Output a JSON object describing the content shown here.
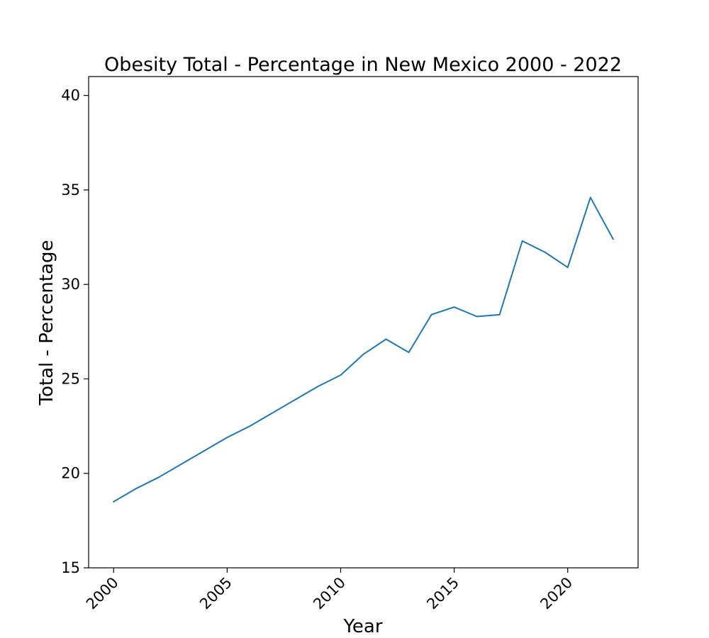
{
  "chart_data": {
    "type": "line",
    "title": "Obesity Total - Percentage in New Mexico 2000 - 2022",
    "xlabel": "Year",
    "ylabel": "Total - Percentage",
    "xlim": [
      1998.9,
      2023.1
    ],
    "ylim": [
      15,
      41
    ],
    "xticks": [
      2000,
      2005,
      2010,
      2015,
      2020
    ],
    "yticks": [
      15,
      20,
      25,
      30,
      35,
      40
    ],
    "grid": false,
    "line_color": "#1f77b4",
    "series": [
      {
        "x": [
          2000,
          2001,
          2002,
          2003,
          2004,
          2005,
          2006,
          2007,
          2008,
          2009,
          2010,
          2011,
          2012,
          2013,
          2014,
          2015,
          2016,
          2017,
          2018,
          2019,
          2020,
          2021,
          2022
        ],
        "values": [
          18.5,
          19.2,
          19.8,
          20.5,
          21.2,
          21.9,
          22.5,
          23.2,
          23.9,
          24.6,
          25.2,
          26.3,
          27.1,
          26.4,
          28.4,
          28.8,
          28.3,
          28.4,
          32.3,
          31.7,
          30.9,
          34.6,
          32.4
        ]
      }
    ]
  }
}
